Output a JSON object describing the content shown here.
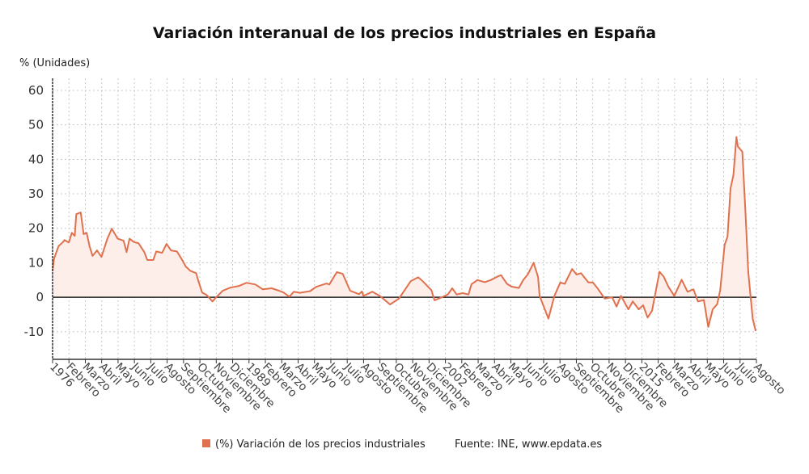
{
  "chart_data": {
    "type": "area",
    "title": "Variación interanual de los precios industriales en España",
    "ylabel": "% (Unidades)",
    "xlabel": "",
    "ylim": [
      -18,
      63.5
    ],
    "xlim": [
      1976,
      2023.55
    ],
    "yticks": [
      -10,
      0,
      10,
      20,
      30,
      40,
      50,
      60
    ],
    "grid": true,
    "legend_position": "bottom",
    "xtick_labels": [
      "1976",
      "Febrero",
      "Marzo",
      "Abril",
      "Mayo",
      "Junio",
      "Julio",
      "Agosto",
      "Septiembre",
      "Octubre",
      "Noviembre",
      "Diciembre",
      "1989",
      "Febrero",
      "Marzo",
      "Abril",
      "Mayo",
      "Junio",
      "Julio",
      "Agosto",
      "Septiembre",
      "Octubre",
      "Noviembre",
      "Diciembre",
      "2002",
      "Febrero",
      "Marzo",
      "Abril",
      "Mayo",
      "Junio",
      "Julio",
      "Agosto",
      "Septiembre",
      "Octubre",
      "Noviembre",
      "Diciembre",
      "2015",
      "Febrero",
      "Marzo",
      "Abril",
      "Mayo",
      "Junio",
      "Julio",
      "Agosto"
    ],
    "series": [
      {
        "name": "(%) Variación de los precios industriales",
        "color": "#e0714f",
        "fill": "#fdeeea",
        "x": [
          1976.0,
          1976.1,
          1976.4,
          1976.7,
          1976.8,
          1977.1,
          1977.3,
          1977.5,
          1977.6,
          1977.9,
          1978.1,
          1978.3,
          1978.5,
          1978.7,
          1979.0,
          1979.3,
          1979.7,
          1980.0,
          1980.4,
          1980.8,
          1981.0,
          1981.2,
          1981.5,
          1981.8,
          1982.2,
          1982.4,
          1982.8,
          1983.0,
          1983.4,
          1983.7,
          1984.0,
          1984.4,
          1984.7,
          1985.0,
          1985.3,
          1985.7,
          1985.8,
          1986.1,
          1986.4,
          1986.8,
          1987.1,
          1987.5,
          1988.0,
          1988.6,
          1989.1,
          1989.7,
          1990.2,
          1990.8,
          1991.3,
          1991.6,
          1992.0,
          1992.3,
          1992.7,
          1993.4,
          1993.8,
          1994.5,
          1994.7,
          1995.2,
          1995.6,
          1996.1,
          1996.7,
          1996.9,
          1997.0,
          1997.6,
          1998.1,
          1998.8,
          1999.4,
          2000.2,
          2000.7,
          2001.0,
          2001.6,
          2001.8,
          2002.3,
          2002.7,
          2003.0,
          2003.3,
          2003.7,
          2004.1,
          2004.3,
          2004.7,
          2005.2,
          2005.6,
          2006.1,
          2006.3,
          2006.7,
          2007.0,
          2007.5,
          2007.8,
          2008.1,
          2008.5,
          2008.8,
          2008.9,
          2009.5,
          2009.9,
          2010.3,
          2010.6,
          2011.1,
          2011.4,
          2011.7,
          2012.2,
          2012.5,
          2012.8,
          2013.3,
          2013.8,
          2014.1,
          2014.4,
          2014.9,
          2015.2,
          2015.6,
          2015.9,
          2016.2,
          2016.5,
          2017.0,
          2017.3,
          2017.6,
          2018.0,
          2018.5,
          2018.9,
          2019.3,
          2019.6,
          2020.0,
          2020.3,
          2020.6,
          2020.9,
          2021.1,
          2021.4,
          2021.6,
          2021.8,
          2022.0,
          2022.2,
          2022.3,
          2022.6,
          2022.8,
          2023.0,
          2023.3,
          2023.5
        ],
        "values": [
          7.7,
          11.2,
          14.8,
          16,
          16.6,
          15.9,
          18.7,
          17.8,
          24.1,
          24.6,
          18.3,
          18.7,
          14.8,
          12,
          13.6,
          11.7,
          17,
          19.9,
          17,
          16.4,
          13.1,
          17,
          16,
          15.7,
          13.1,
          10.8,
          10.8,
          13.3,
          12.9,
          15.5,
          13.6,
          13.3,
          11.2,
          8.9,
          7.7,
          7,
          5.4,
          1.4,
          0.7,
          -1.2,
          0.2,
          1.9,
          2.8,
          3.3,
          4.2,
          3.7,
          2.3,
          2.6,
          1.9,
          1.4,
          0.2,
          1.6,
          1.3,
          1.8,
          3,
          4,
          3.7,
          7.3,
          6.8,
          1.9,
          0.9,
          1.7,
          0.4,
          1.6,
          0.4,
          -2.1,
          -0.4,
          4.7,
          5.8,
          4.7,
          2,
          -0.9,
          0,
          0.8,
          2.6,
          0.8,
          1.2,
          0.8,
          3.8,
          5,
          4.4,
          5,
          6.1,
          6.4,
          3.9,
          3.1,
          2.7,
          5,
          6.6,
          10,
          5.9,
          0.4,
          -6.2,
          0.4,
          4.3,
          3.9,
          8.2,
          6.6,
          7,
          4.3,
          4.3,
          2.7,
          -0.4,
          0,
          -2.7,
          0.4,
          -3.5,
          -1.2,
          -3.5,
          -2.3,
          -5.9,
          -3.9,
          7.4,
          5.9,
          3.1,
          0.4,
          5.1,
          1.6,
          2.3,
          -1.2,
          -0.8,
          -8.6,
          -3.5,
          -2,
          2,
          15.2,
          17.6,
          31.6,
          35.5,
          46.5,
          43.7,
          42.2,
          25.4,
          7.4,
          -6.2,
          -9.8
        ]
      }
    ],
    "source": "Fuente: INE, www.epdata.es"
  }
}
